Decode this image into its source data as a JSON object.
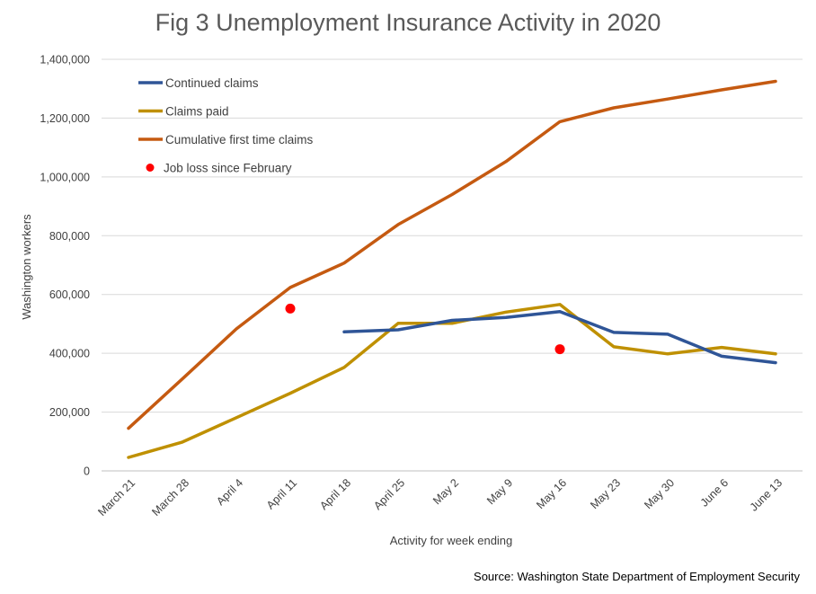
{
  "chart_data": {
    "type": "line",
    "title": "Fig 3 Unemployment Insurance Activity in 2020",
    "xlabel": "Activity for week ending",
    "ylabel": "Washington workers",
    "source": "Source: Washington State Department of Employment Security",
    "ylim": [
      0,
      1400000
    ],
    "yticks": [
      "0",
      "200,000",
      "400,000",
      "600,000",
      "800,000",
      "1,000,000",
      "1,200,000",
      "1,400,000"
    ],
    "grid": true,
    "legend_position": "top-left",
    "categories": [
      "March 21",
      "March 28",
      "April 4",
      "April 11",
      "April 18",
      "April 25",
      "May 2",
      "May 9",
      "May 16",
      "May 23",
      "May 30",
      "June 6",
      "June 13"
    ],
    "series": [
      {
        "name": "Continued claims",
        "color": "#2F5597",
        "values": [
          null,
          null,
          null,
          null,
          473000,
          480000,
          512000,
          522000,
          542000,
          471000,
          465000,
          390000,
          368000
        ]
      },
      {
        "name": "Claims paid",
        "color": "#BF9000",
        "values": [
          46000,
          98000,
          181000,
          264000,
          352000,
          502000,
          502000,
          540000,
          566000,
          422000,
          398000,
          420000,
          398000
        ]
      },
      {
        "name": "Cumulative first time claims",
        "color": "#C55A11",
        "values": [
          145000,
          313000,
          483000,
          624000,
          707000,
          838000,
          940000,
          1052000,
          1188000,
          1235000,
          1265000,
          1296000,
          1325000
        ]
      }
    ],
    "points": {
      "name": "Job loss since February",
      "color": "#FF0000",
      "data": [
        {
          "x": "April 11",
          "y": 552000
        },
        {
          "x": "May 16",
          "y": 414000
        }
      ]
    }
  }
}
